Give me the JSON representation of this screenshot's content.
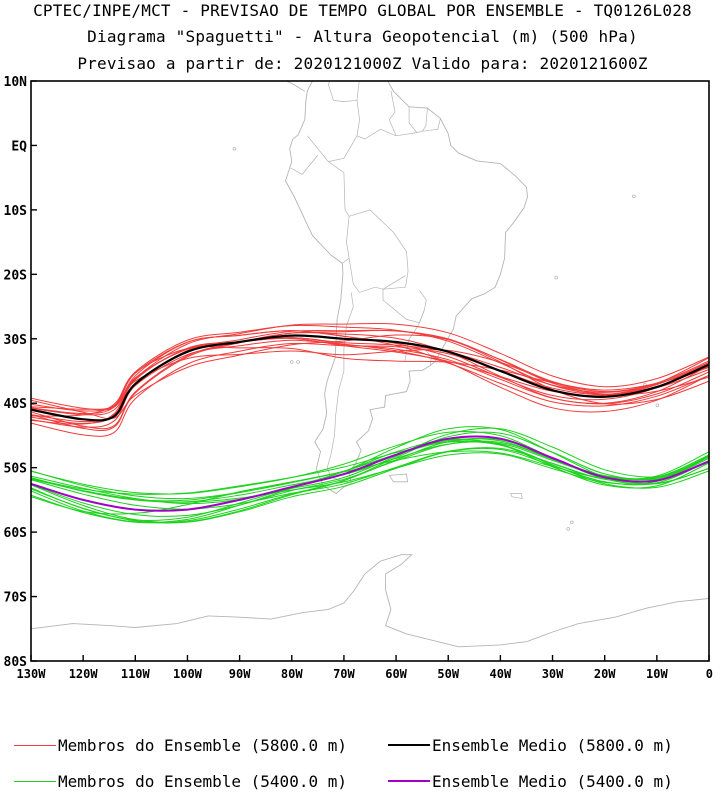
{
  "header": {
    "line1": "CPTEC/INPE/MCT - PREVISAO DE TEMPO GLOBAL POR ENSEMBLE - TQ0126L028",
    "line2": "Diagrama \"Spaguetti\" - Altura Geopotencial (m) (500 hPa)",
    "line3": "Previsao a partir de: 2020121000Z  Valido para: 2020121600Z"
  },
  "axes": {
    "y_ticks": [
      "10N",
      "EQ",
      "10S",
      "20S",
      "30S",
      "40S",
      "50S",
      "60S",
      "70S",
      "80S"
    ],
    "x_ticks": [
      "130W",
      "120W",
      "110W",
      "100W",
      "90W",
      "80W",
      "70W",
      "60W",
      "50W",
      "40W",
      "30W",
      "20W",
      "10W",
      "0"
    ]
  },
  "legend": {
    "members_5800": "Membros do Ensemble (5800.0 m)",
    "mean_5800": "Ensemble Medio (5800.0 m)",
    "members_5400": "Membros do Ensemble (5400.0 m)",
    "mean_5400": "Ensemble Medio (5400.0 m)"
  },
  "colors": {
    "members_5800": "#f03c3c",
    "mean_5800": "#000000",
    "members_5400": "#1ed21e",
    "mean_5400": "#a000c8",
    "coastline": "#b4b4b4"
  },
  "map_data": {
    "projection": "cylindrical equidistant",
    "lon_range": [
      -130,
      0
    ],
    "lat_range": [
      -80,
      10
    ],
    "contours": {
      "mean_5800": {
        "lon": [
          -130,
          -120,
          -114,
          -110,
          -100,
          -90,
          -80,
          -70,
          -60,
          -50,
          -40,
          -30,
          -20,
          -10,
          0
        ],
        "lat": [
          -41,
          -42.5,
          -42,
          -37,
          -32,
          -30.5,
          -29.5,
          -30,
          -30.5,
          -32,
          -35,
          -38,
          -39,
          -37.5,
          -34
        ]
      },
      "mean_5400": {
        "lon": [
          -130,
          -120,
          -110,
          -100,
          -90,
          -80,
          -70,
          -60,
          -50,
          -40,
          -30,
          -20,
          -10,
          0
        ],
        "lat": [
          -52.5,
          -55,
          -56.5,
          -56.5,
          -55,
          -53,
          -51,
          -48,
          -45.5,
          -45.5,
          -48.5,
          -51.5,
          -52,
          -49
        ]
      },
      "members_count": 15
    }
  }
}
